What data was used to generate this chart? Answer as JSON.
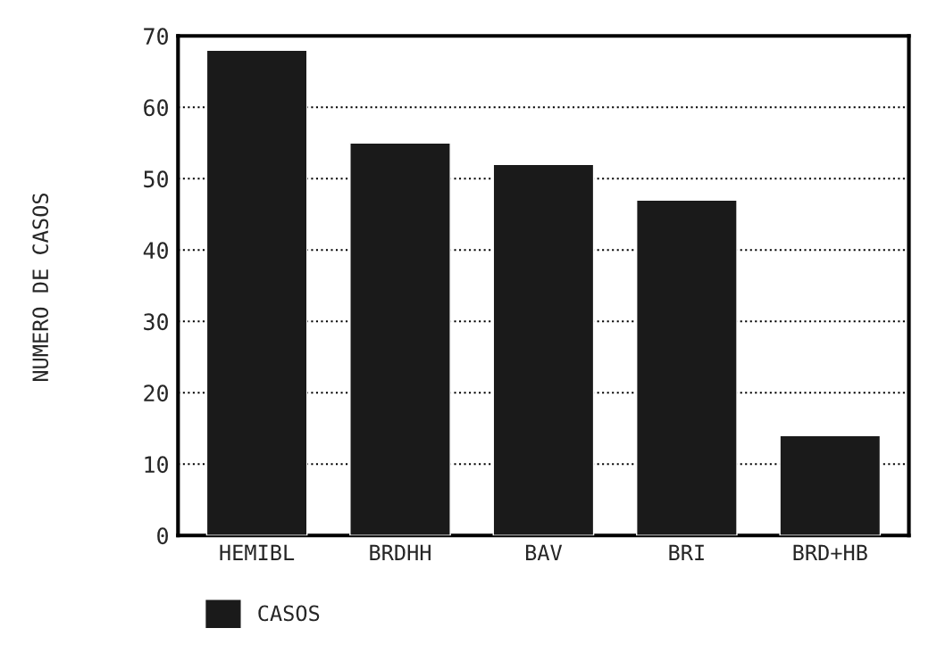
{
  "chart_data": {
    "type": "bar",
    "ylabel": "NUMERO DE CASOS",
    "categories": [
      "HEMIBL",
      "BRDHH",
      "BAV",
      "BRI",
      "BRD+HB"
    ],
    "series": [
      {
        "name": "CASOS",
        "color": "#1a1a1a",
        "values": [
          68,
          55,
          52,
          47,
          14
        ]
      }
    ],
    "ylim": [
      0,
      70
    ],
    "yticks": [
      0,
      10,
      20,
      30,
      40,
      50,
      60,
      70
    ],
    "grid": "y",
    "legend": "bottom left"
  }
}
